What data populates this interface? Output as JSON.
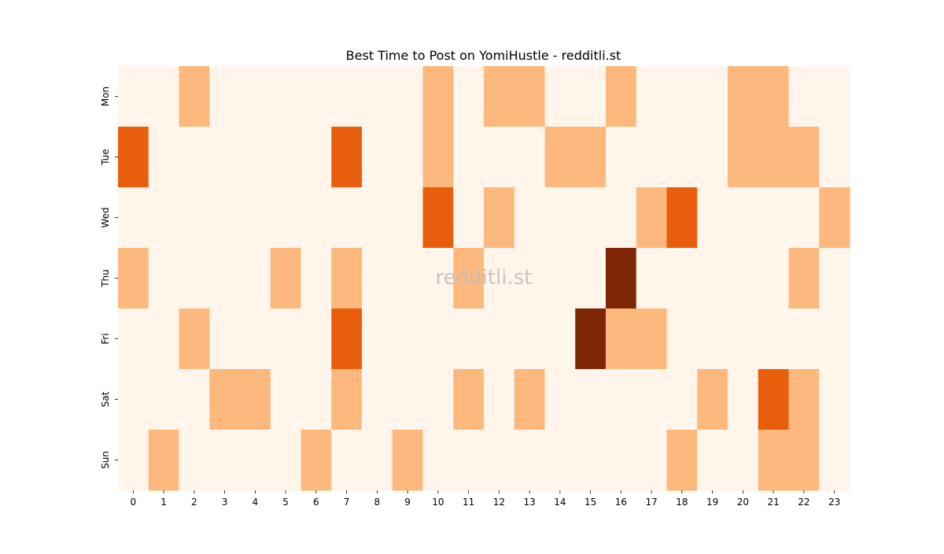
{
  "chart_data": {
    "type": "heatmap",
    "title": "Best Time to Post on YomiHustle - redditli.st",
    "watermark": "redditli.st",
    "xlabel": "",
    "ylabel": "",
    "x_labels": [
      "0",
      "1",
      "2",
      "3",
      "4",
      "5",
      "6",
      "7",
      "8",
      "9",
      "10",
      "11",
      "12",
      "13",
      "14",
      "15",
      "16",
      "17",
      "18",
      "19",
      "20",
      "21",
      "22",
      "23"
    ],
    "y_labels": [
      "Mon",
      "Tue",
      "Wed",
      "Thu",
      "Fri",
      "Sat",
      "Sun"
    ],
    "values": [
      [
        0,
        0,
        1,
        0,
        0,
        0,
        0,
        0,
        0,
        0,
        1,
        0,
        1,
        1,
        0,
        0,
        1,
        0,
        0,
        0,
        1,
        1,
        0,
        0
      ],
      [
        2,
        0,
        0,
        0,
        0,
        0,
        0,
        2,
        0,
        0,
        1,
        0,
        0,
        0,
        1,
        1,
        0,
        0,
        0,
        0,
        1,
        1,
        1,
        0
      ],
      [
        0,
        0,
        0,
        0,
        0,
        0,
        0,
        0,
        0,
        0,
        2,
        0,
        1,
        0,
        0,
        0,
        0,
        1,
        2,
        0,
        0,
        0,
        0,
        1
      ],
      [
        1,
        0,
        0,
        0,
        0,
        1,
        0,
        1,
        0,
        0,
        0,
        1,
        0,
        0,
        0,
        0,
        3,
        0,
        0,
        0,
        0,
        0,
        1,
        0
      ],
      [
        0,
        0,
        1,
        0,
        0,
        0,
        0,
        2,
        0,
        0,
        0,
        0,
        0,
        0,
        0,
        3,
        1,
        1,
        0,
        0,
        0,
        0,
        0,
        0
      ],
      [
        0,
        0,
        0,
        1,
        1,
        0,
        0,
        1,
        0,
        0,
        0,
        1,
        0,
        1,
        0,
        0,
        0,
        0,
        0,
        1,
        0,
        2,
        1,
        0
      ],
      [
        0,
        1,
        0,
        0,
        0,
        0,
        1,
        0,
        0,
        1,
        0,
        0,
        0,
        0,
        0,
        0,
        0,
        0,
        1,
        0,
        0,
        1,
        1,
        0
      ]
    ],
    "color_scale": [
      "#fff5eb",
      "#fdb97d",
      "#e95e0d",
      "#7f2704"
    ],
    "legend": "none",
    "grid": false
  }
}
